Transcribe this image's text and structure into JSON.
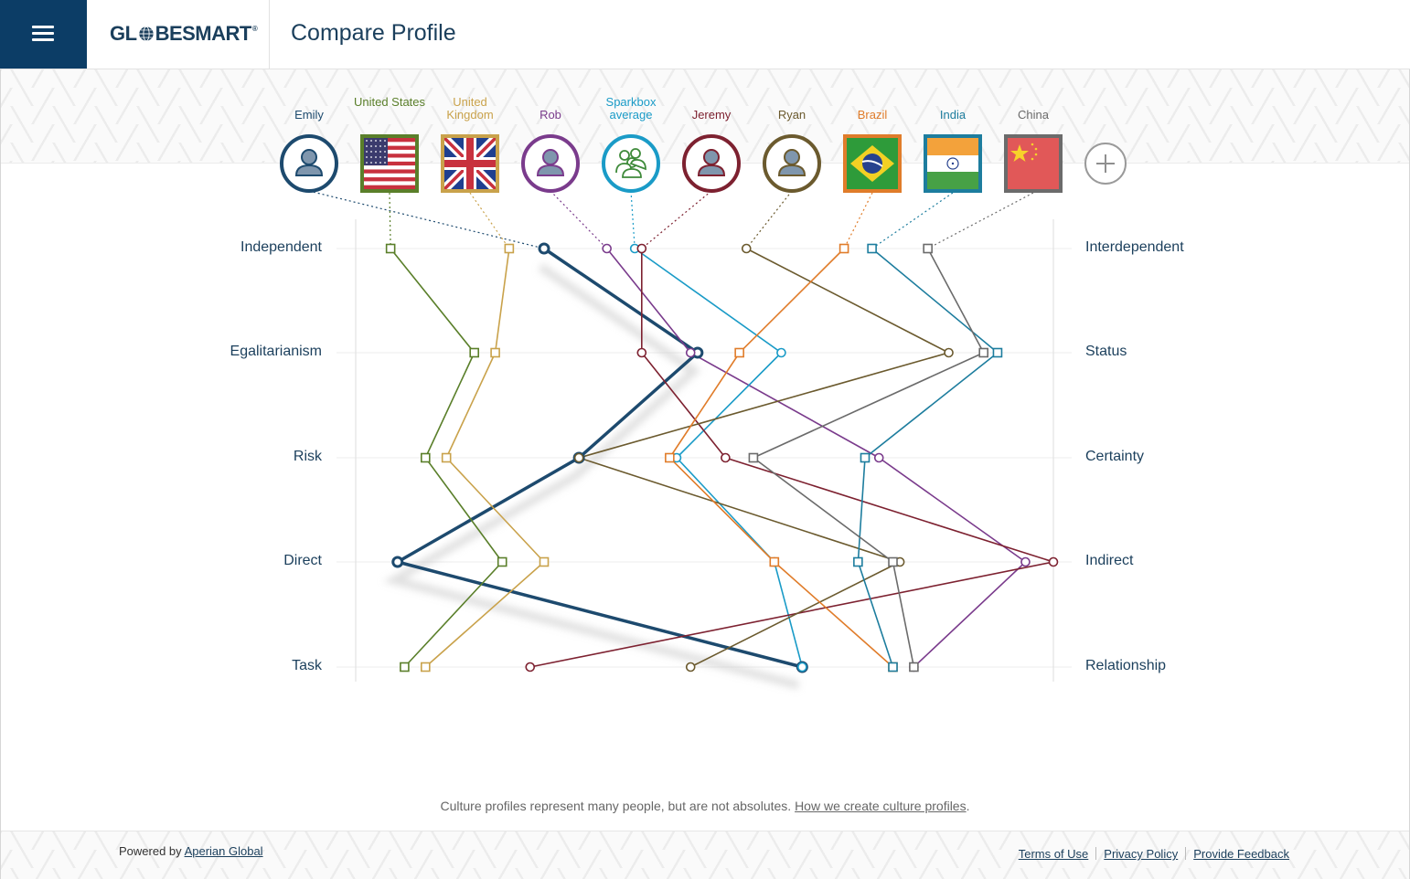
{
  "header": {
    "logo_text_a": "GL",
    "logo_text_b": "BESMART",
    "logo_mark": "®",
    "title": "Compare Profile",
    "menu_icon": "hamburger-icon"
  },
  "profiles": [
    {
      "id": "emily",
      "label": "Emily",
      "kind": "person",
      "color": "#1d4a6e"
    },
    {
      "id": "united-states",
      "label": "United States",
      "kind": "flag-us",
      "color": "#5a7f2a"
    },
    {
      "id": "united-kingdom",
      "label": "United Kingdom",
      "kind": "flag-uk",
      "color": "#c9a24b"
    },
    {
      "id": "rob",
      "label": "Rob",
      "kind": "person",
      "color": "#7a3b8c"
    },
    {
      "id": "sparkbox-average",
      "label": "Sparkbox average",
      "kind": "group",
      "color": "#1a9bc7"
    },
    {
      "id": "jeremy",
      "label": "Jeremy",
      "kind": "person",
      "color": "#7d2130"
    },
    {
      "id": "ryan",
      "label": "Ryan",
      "kind": "person",
      "color": "#6b5a2e"
    },
    {
      "id": "brazil",
      "label": "Brazil",
      "kind": "flag-br",
      "color": "#e07c2a"
    },
    {
      "id": "india",
      "label": "India",
      "kind": "flag-in",
      "color": "#1d7d9e"
    },
    {
      "id": "china",
      "label": "China",
      "kind": "flag-cn",
      "color": "#6b6b6b"
    }
  ],
  "add_button": {
    "icon": "plus-icon"
  },
  "chart_data": {
    "type": "line",
    "dimensions": [
      {
        "left": "Independent",
        "right": "Interdependent"
      },
      {
        "left": "Egalitarianism",
        "right": "Status"
      },
      {
        "left": "Risk",
        "right": "Certainty"
      },
      {
        "left": "Direct",
        "right": "Indirect"
      },
      {
        "left": "Task",
        "right": "Relationship"
      }
    ],
    "scale": [
      0,
      100
    ],
    "series": [
      {
        "profile": "emily",
        "marker": "circle",
        "emphasis": true,
        "values": [
          27,
          49,
          32,
          6,
          64
        ]
      },
      {
        "profile": "united-states",
        "marker": "square",
        "values": [
          5,
          17,
          10,
          21,
          7
        ]
      },
      {
        "profile": "united-kingdom",
        "marker": "square",
        "values": [
          22,
          20,
          13,
          27,
          10
        ]
      },
      {
        "profile": "rob",
        "marker": "circle",
        "values": [
          36,
          48,
          75,
          96,
          80
        ]
      },
      {
        "profile": "sparkbox-average",
        "marker": "circle",
        "values": [
          40,
          61,
          46,
          60,
          64
        ]
      },
      {
        "profile": "jeremy",
        "marker": "circle",
        "values": [
          41,
          41,
          53,
          100,
          25
        ]
      },
      {
        "profile": "ryan",
        "marker": "circle",
        "values": [
          56,
          85,
          32,
          78,
          48
        ]
      },
      {
        "profile": "brazil",
        "marker": "square",
        "values": [
          70,
          55,
          45,
          60,
          77
        ]
      },
      {
        "profile": "india",
        "marker": "square",
        "values": [
          74,
          92,
          73,
          72,
          77
        ]
      },
      {
        "profile": "china",
        "marker": "square",
        "values": [
          82,
          90,
          57,
          77,
          80
        ]
      }
    ]
  },
  "footer": {
    "disclaimer": "Culture profiles represent many people, but are not absolutes.",
    "disclaimer_link": "How we create culture profiles",
    "disclaimer_end": ".",
    "powered_prefix": "Powered by",
    "powered_link": "Aperian Global",
    "links": [
      "Terms of Use",
      "Privacy Policy",
      "Provide Feedback"
    ]
  }
}
